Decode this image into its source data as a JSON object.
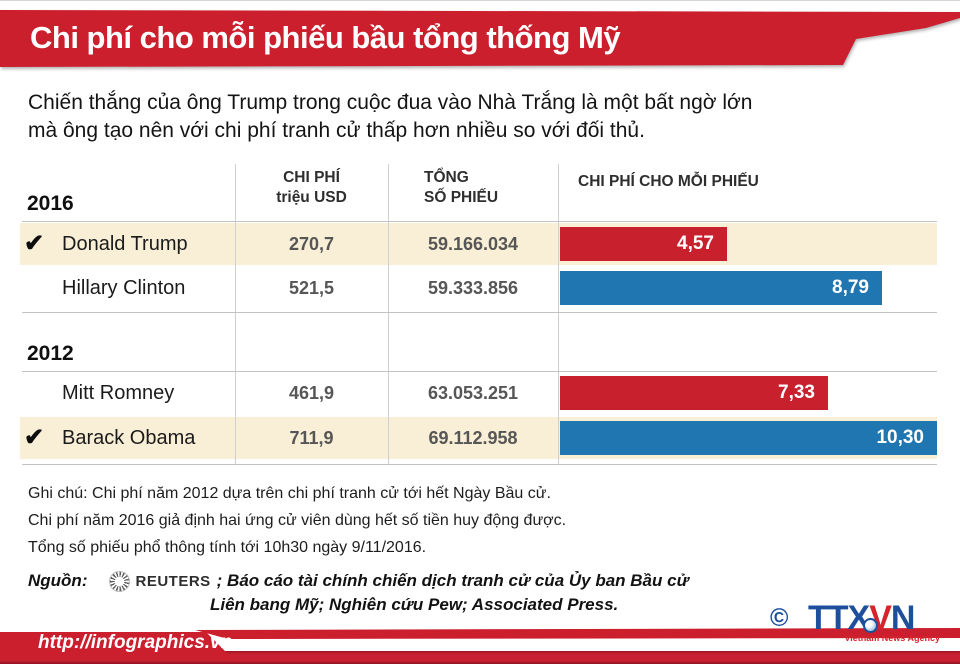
{
  "header": {
    "title": "Chi phí cho mỗi phiếu bầu tổng thống Mỹ"
  },
  "intro": {
    "line1": "Chiến thắng của ông Trump trong cuộc đua vào Nhà Trắng là một bất ngờ lớn",
    "line2": "mà ông tạo nên với chi phí tranh cử thấp hơn nhiều so với đối thủ."
  },
  "table": {
    "winner_mark": "✔",
    "columns": {
      "cost1": "CHI PHÍ",
      "cost2": "triệu USD",
      "votes1": "TỔNG",
      "votes2": "SỐ PHIẾU",
      "cpv": "CHI PHÍ CHO MỖI PHIẾU"
    },
    "sections": [
      {
        "year": "2016",
        "rows": [
          {
            "name": "Donald Trump",
            "winner": true,
            "cost": "270,7",
            "votes": "59.166.034",
            "cpv_label": "4,57"
          },
          {
            "name": "Hillary Clinton",
            "winner": false,
            "cost": "521,5",
            "votes": "59.333.856",
            "cpv_label": "8,79"
          }
        ]
      },
      {
        "year": "2012",
        "rows": [
          {
            "name": "Mitt Romney",
            "winner": false,
            "cost": "461,9",
            "votes": "63.053.251",
            "cpv_label": "7,33"
          },
          {
            "name": "Barack Obama",
            "winner": true,
            "cost": "711,9",
            "votes": "69.112.958",
            "cpv_label": "10,30"
          }
        ]
      }
    ]
  },
  "notes": {
    "line1": "Ghi chú: Chi phí năm 2012 dựa trên chi phí tranh cử tới hết Ngày Bầu cử.",
    "line2": "Chi phí năm 2016 giả định hai ứng cử viên dùng hết số tiền huy động được.",
    "line3": "Tổng số phiếu phổ thông tính tới 10h30 ngày 9/11/2016."
  },
  "source": {
    "label": "Nguồn:",
    "agency": "REUTERS",
    "text1": "; Báo cáo tài chính chiến dịch tranh cử của Ủy ban Bầu cử",
    "text2": "Liên bang Mỹ; Nghiên cứu Pew; Associated Press."
  },
  "footer": {
    "url": "http://infographics.vn"
  },
  "branding": {
    "copyright": "©",
    "ttx": "TTX",
    "v": "V",
    "n": "N",
    "subtitle": "Vietnam News Agency"
  },
  "colors": {
    "red": "#c9202e",
    "blue": "#2076b0",
    "beige": "#f9efd6",
    "dark_red": "#961423",
    "line_gray": "#c3c3c3"
  },
  "chart_data": {
    "type": "bar",
    "orientation": "horizontal",
    "title": "CHI PHÍ CHO MỖI PHIẾU",
    "unit": "USD / phiếu",
    "categories": [
      "Donald Trump",
      "Hillary Clinton",
      "Mitt Romney",
      "Barack Obama"
    ],
    "groups": [
      "2016",
      "2016",
      "2012",
      "2012"
    ],
    "values": [
      4.57,
      8.79,
      7.33,
      10.3
    ],
    "bar_colors": [
      "#c9202e",
      "#2076b0",
      "#c9202e",
      "#2076b0"
    ],
    "cost_million_usd": [
      270.7,
      521.5,
      461.9,
      711.9
    ],
    "total_votes": [
      59166034,
      59333856,
      63053251,
      69112958
    ],
    "winners": [
      "Donald Trump",
      "Barack Obama"
    ],
    "xlim": [
      0,
      10.3
    ],
    "grid": false,
    "value_labels": "inside-end"
  }
}
